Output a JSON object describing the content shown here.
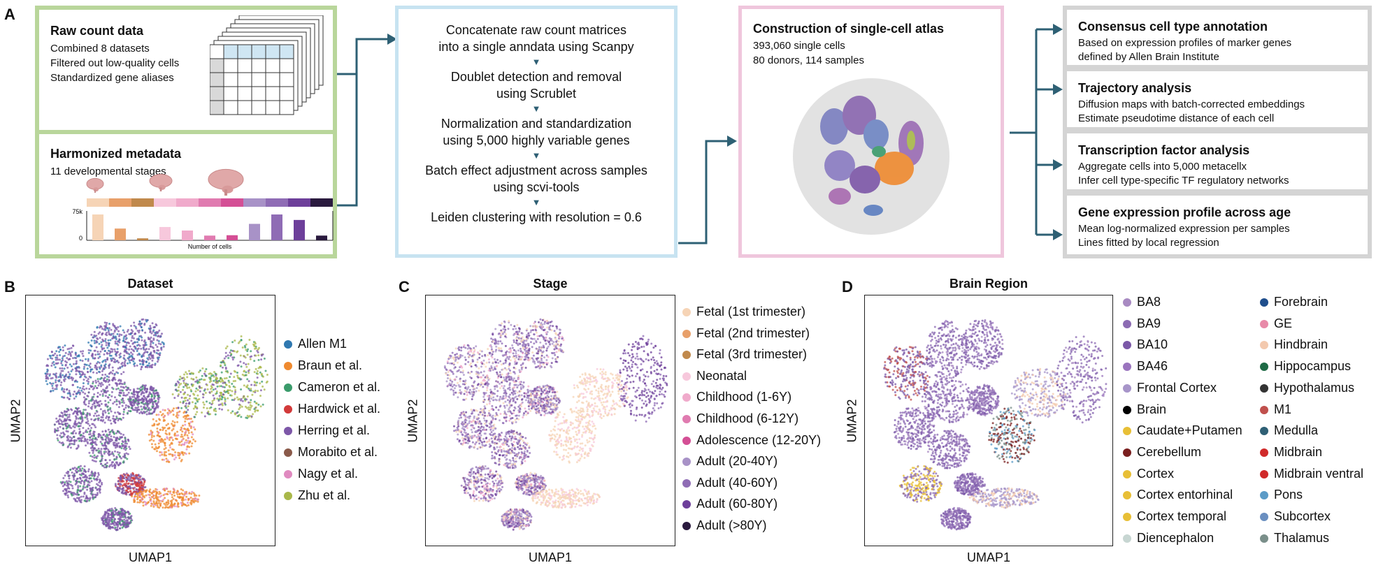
{
  "panelA": {
    "letter": "A",
    "raw": {
      "title": "Raw count data",
      "lines": [
        "Combined 8 datasets",
        "Filtered out low-quality cells",
        "Standardized gene aliases"
      ]
    },
    "meta": {
      "title": "Harmonized metadata",
      "subtitle": "11 developmental stages",
      "ytick_top": "75k",
      "ytick_bottom": "0",
      "xlabel": "Number of cells",
      "bar_values": [
        66,
        30,
        5,
        34,
        25,
        12,
        13,
        42,
        66,
        52,
        12
      ],
      "stage_colors": [
        "#f6d4b6",
        "#e8a06a",
        "#c0894c",
        "#f7c8dc",
        "#f0aacb",
        "#e07bb0",
        "#d44f95",
        "#a892c7",
        "#8f6cb5",
        "#6d3f9a",
        "#2a1a3e"
      ]
    },
    "pipeline": {
      "steps": [
        [
          "Concatenate raw count matrices",
          "into a single anndata using Scanpy"
        ],
        [
          "Doublet detection and removal",
          "using Scrublet"
        ],
        [
          "Normalization and standardization",
          "using 5,000 highly variable genes"
        ],
        [
          "Batch effect adjustment across samples",
          "using scvi-tools"
        ],
        [
          "Leiden clustering with resolution = 0.6"
        ]
      ],
      "arrow_glyph": "▼"
    },
    "atlas": {
      "title": "Construction of single-cell atlas",
      "lines": [
        "393,060 single cells",
        "80 donors, 114 samples"
      ]
    },
    "analyses": [
      {
        "title": "Consensus cell type annotation",
        "lines": [
          "Based on expression profiles of marker genes",
          "defined by Allen Brain Institute"
        ]
      },
      {
        "title": "Trajectory analysis",
        "lines": [
          "Diffusion maps with batch-corrected embeddings",
          "Estimate pseudotime distance of each cell"
        ]
      },
      {
        "title": "Transcription factor analysis",
        "lines": [
          "Aggregate cells into 5,000 metacellx",
          "Infer cell type-specific TF regulatory networks"
        ]
      },
      {
        "title": "Gene expression profile across age",
        "lines": [
          "Mean log-normalized expression per samples",
          "Lines fitted by local regression"
        ]
      }
    ]
  },
  "panelB": {
    "letter": "B",
    "title": "Dataset",
    "xlabel": "UMAP1",
    "ylabel": "UMAP2",
    "legend": [
      {
        "label": "Allen M1",
        "color": "#2f78b0"
      },
      {
        "label": "Braun et al.",
        "color": "#ef8a2f"
      },
      {
        "label": "Cameron et al.",
        "color": "#3a9b6b"
      },
      {
        "label": "Hardwick et al.",
        "color": "#d23a3a"
      },
      {
        "label": "Herring et al.",
        "color": "#7d57a8"
      },
      {
        "label": "Morabito et al.",
        "color": "#8a5a4a"
      },
      {
        "label": "Nagy et al.",
        "color": "#e08ac0"
      },
      {
        "label": "Zhu et al.",
        "color": "#a9b84a"
      }
    ]
  },
  "panelC": {
    "letter": "C",
    "title": "Stage",
    "xlabel": "UMAP1",
    "ylabel": "UMAP2",
    "legend": [
      {
        "label": "Fetal (1st trimester)",
        "color": "#f6d4b6"
      },
      {
        "label": "Fetal (2nd trimester)",
        "color": "#e8a06a"
      },
      {
        "label": "Fetal (3rd trimester)",
        "color": "#c0894c"
      },
      {
        "label": "Neonatal",
        "color": "#f7c8dc"
      },
      {
        "label": "Childhood (1-6Y)",
        "color": "#f0aacb"
      },
      {
        "label": "Childhood (6-12Y)",
        "color": "#e07bb0"
      },
      {
        "label": "Adolescence (12-20Y)",
        "color": "#d44f95"
      },
      {
        "label": "Adult (20-40Y)",
        "color": "#a892c7"
      },
      {
        "label": "Adult (40-60Y)",
        "color": "#8f6cb5"
      },
      {
        "label": "Adult (60-80Y)",
        "color": "#6d3f9a"
      },
      {
        "label": "Adult (>80Y)",
        "color": "#2a1a3e"
      }
    ]
  },
  "panelD": {
    "letter": "D",
    "title": "Brain Region",
    "xlabel": "UMAP1",
    "ylabel": "UMAP2",
    "legend_left": [
      {
        "label": "BA8",
        "color": "#a88ac2"
      },
      {
        "label": "BA9",
        "color": "#8c6bb3"
      },
      {
        "label": "BA10",
        "color": "#7b58a8"
      },
      {
        "label": "BA46",
        "color": "#9a74be"
      },
      {
        "label": "Frontal Cortex",
        "color": "#a795c9"
      },
      {
        "label": "Brain",
        "color": "#000000"
      },
      {
        "label": "Caudate+Putamen",
        "color": "#e8bf36"
      },
      {
        "label": "Cerebellum",
        "color": "#7a1f1f"
      },
      {
        "label": "Cortex",
        "color": "#e8bf36"
      },
      {
        "label": "Cortex entorhinal",
        "color": "#e8bf36"
      },
      {
        "label": "Cortex temporal",
        "color": "#e8bf36"
      },
      {
        "label": "Diencephalon",
        "color": "#c7d6d2"
      }
    ],
    "legend_right": [
      {
        "label": "Forebrain",
        "color": "#1f4e8c"
      },
      {
        "label": "GE",
        "color": "#e88aa8"
      },
      {
        "label": "Hindbrain",
        "color": "#f3c9ae"
      },
      {
        "label": "Hippocampus",
        "color": "#1e6a45"
      },
      {
        "label": "Hypothalamus",
        "color": "#333333"
      },
      {
        "label": "M1",
        "color": "#c0504d"
      },
      {
        "label": "Medulla",
        "color": "#2f6075"
      },
      {
        "label": "Midbrain",
        "color": "#d02a2a"
      },
      {
        "label": "Midbrain ventral",
        "color": "#d02a2a"
      },
      {
        "label": "Pons",
        "color": "#5b9bc7"
      },
      {
        "label": "Subcortex",
        "color": "#6a8fc0"
      },
      {
        "label": "Thalamus",
        "color": "#7a8f8a"
      }
    ]
  },
  "colors": {
    "arrow": "#2e6074",
    "green_border": "#b9d69b",
    "blue_border": "#c7e3f1",
    "pink_border": "#efc6dc",
    "gray_border": "#d4d4d4"
  }
}
